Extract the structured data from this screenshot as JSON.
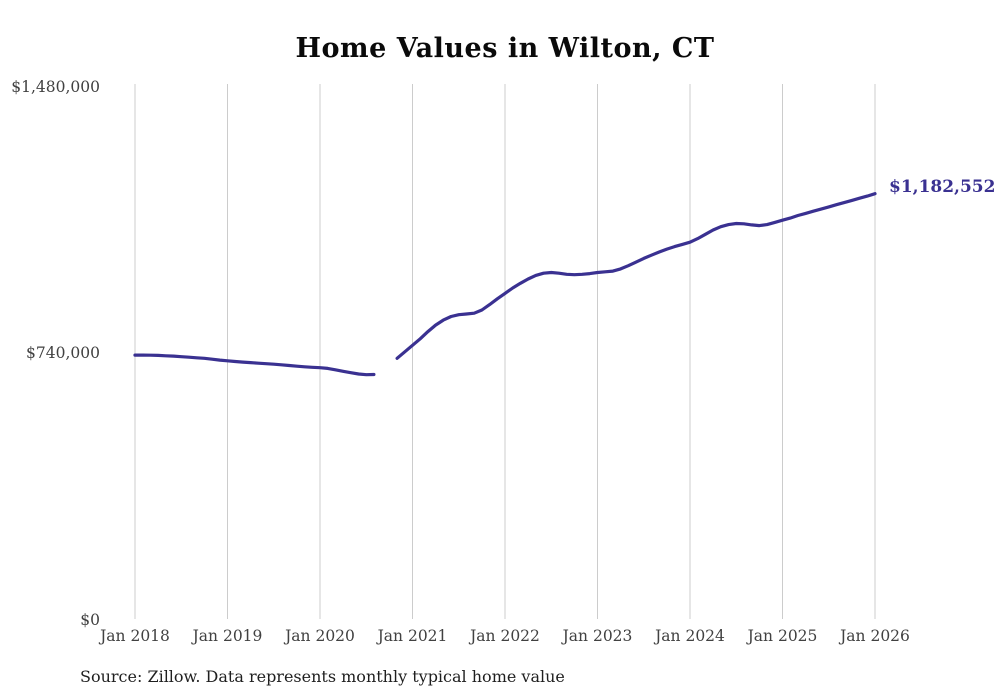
{
  "title": "Home Values in Wilton, CT",
  "source_note": "Source: Zillow. Data represents monthly typical home value",
  "colors": {
    "line": "#3a3191",
    "grid": "#cccccc",
    "tick_text": "#414141",
    "title_text": "#0a0a0a",
    "end_label_text": "#3a3191",
    "background": "#ffffff"
  },
  "chart_data": {
    "type": "line",
    "title": "Home Values in Wilton, CT",
    "xlabel": "",
    "ylabel": "",
    "ylim": [
      0,
      1480000
    ],
    "xlim": [
      2018,
      2026
    ],
    "grid": "vertical-only",
    "legend": "none",
    "yticks": [
      {
        "value": 0,
        "label": "$0"
      },
      {
        "value": 740000,
        "label": "$740,000"
      },
      {
        "value": 1480000,
        "label": "$1,480,000"
      }
    ],
    "xticks": [
      {
        "x": 2018,
        "label": "Jan 2018"
      },
      {
        "x": 2019,
        "label": "Jan 2019"
      },
      {
        "x": 2020,
        "label": "Jan 2020"
      },
      {
        "x": 2021,
        "label": "Jan 2021"
      },
      {
        "x": 2022,
        "label": "Jan 2022"
      },
      {
        "x": 2023,
        "label": "Jan 2023"
      },
      {
        "x": 2024,
        "label": "Jan 2024"
      },
      {
        "x": 2025,
        "label": "Jan 2025"
      },
      {
        "x": 2026,
        "label": "Jan 2026"
      }
    ],
    "end_annotation": {
      "label": "$1,182,552",
      "x": 2026,
      "value": 1182552
    },
    "series": [
      {
        "name": "Monthly typical home value",
        "segments": [
          {
            "points": [
              [
                2018.0,
                735000
              ],
              [
                2018.083,
                735000
              ],
              [
                2018.167,
                734500
              ],
              [
                2018.25,
                734000
              ],
              [
                2018.333,
                733000
              ],
              [
                2018.417,
                732000
              ],
              [
                2018.5,
                730500
              ],
              [
                2018.583,
                729000
              ],
              [
                2018.667,
                727500
              ],
              [
                2018.75,
                726000
              ],
              [
                2018.833,
                723500
              ],
              [
                2018.917,
                721000
              ],
              [
                2019.0,
                719000
              ],
              [
                2019.083,
                717000
              ],
              [
                2019.167,
                715500
              ],
              [
                2019.25,
                714000
              ],
              [
                2019.333,
                712500
              ],
              [
                2019.417,
                711000
              ],
              [
                2019.5,
                709500
              ],
              [
                2019.583,
                708000
              ],
              [
                2019.667,
                706000
              ],
              [
                2019.75,
                704000
              ],
              [
                2019.833,
                702500
              ],
              [
                2019.917,
                701000
              ],
              [
                2020.0,
                700000
              ],
              [
                2020.083,
                698000
              ],
              [
                2020.167,
                694000
              ],
              [
                2020.25,
                690000
              ],
              [
                2020.333,
                686000
              ],
              [
                2020.417,
                682500
              ],
              [
                2020.5,
                680500
              ],
              [
                2020.583,
                681000
              ]
            ]
          },
          {
            "points": [
              [
                2020.833,
                726000
              ],
              [
                2020.917,
                744000
              ],
              [
                2021.0,
                762000
              ],
              [
                2021.083,
                780000
              ],
              [
                2021.167,
                800000
              ],
              [
                2021.25,
                818000
              ],
              [
                2021.333,
                832000
              ],
              [
                2021.417,
                842000
              ],
              [
                2021.5,
                847000
              ],
              [
                2021.583,
                849000
              ],
              [
                2021.667,
                851000
              ],
              [
                2021.75,
                860000
              ],
              [
                2021.833,
                875000
              ],
              [
                2021.917,
                891000
              ],
              [
                2022.0,
                906000
              ],
              [
                2022.083,
                921000
              ],
              [
                2022.167,
                934000
              ],
              [
                2022.25,
                946000
              ],
              [
                2022.333,
                956000
              ],
              [
                2022.417,
                962000
              ],
              [
                2022.5,
                964000
              ],
              [
                2022.583,
                962000
              ],
              [
                2022.667,
                959000
              ],
              [
                2022.75,
                958000
              ],
              [
                2022.833,
                959000
              ],
              [
                2022.917,
                961000
              ],
              [
                2023.0,
                964000
              ],
              [
                2023.083,
                966000
              ],
              [
                2023.167,
                968000
              ],
              [
                2023.25,
                974000
              ],
              [
                2023.333,
                983000
              ],
              [
                2023.417,
                993000
              ],
              [
                2023.5,
                1003000
              ],
              [
                2023.583,
                1012000
              ],
              [
                2023.667,
                1021000
              ],
              [
                2023.75,
                1029000
              ],
              [
                2023.833,
                1036000
              ],
              [
                2023.917,
                1042000
              ],
              [
                2024.0,
                1048000
              ],
              [
                2024.083,
                1058000
              ],
              [
                2024.167,
                1070000
              ],
              [
                2024.25,
                1082000
              ],
              [
                2024.333,
                1091000
              ],
              [
                2024.417,
                1097000
              ],
              [
                2024.5,
                1100000
              ],
              [
                2024.583,
                1099000
              ],
              [
                2024.667,
                1096000
              ],
              [
                2024.75,
                1094000
              ],
              [
                2024.833,
                1097000
              ],
              [
                2024.917,
                1103000
              ],
              [
                2025.0,
                1109000
              ],
              [
                2025.083,
                1115000
              ],
              [
                2025.167,
                1122000
              ],
              [
                2025.25,
                1128000
              ],
              [
                2025.333,
                1134000
              ],
              [
                2025.417,
                1140000
              ],
              [
                2025.5,
                1146000
              ],
              [
                2025.583,
                1152000
              ],
              [
                2025.667,
                1158000
              ],
              [
                2025.75,
                1164000
              ],
              [
                2025.833,
                1170000
              ],
              [
                2025.917,
                1176000
              ],
              [
                2026.0,
                1182552
              ]
            ]
          }
        ]
      }
    ]
  }
}
